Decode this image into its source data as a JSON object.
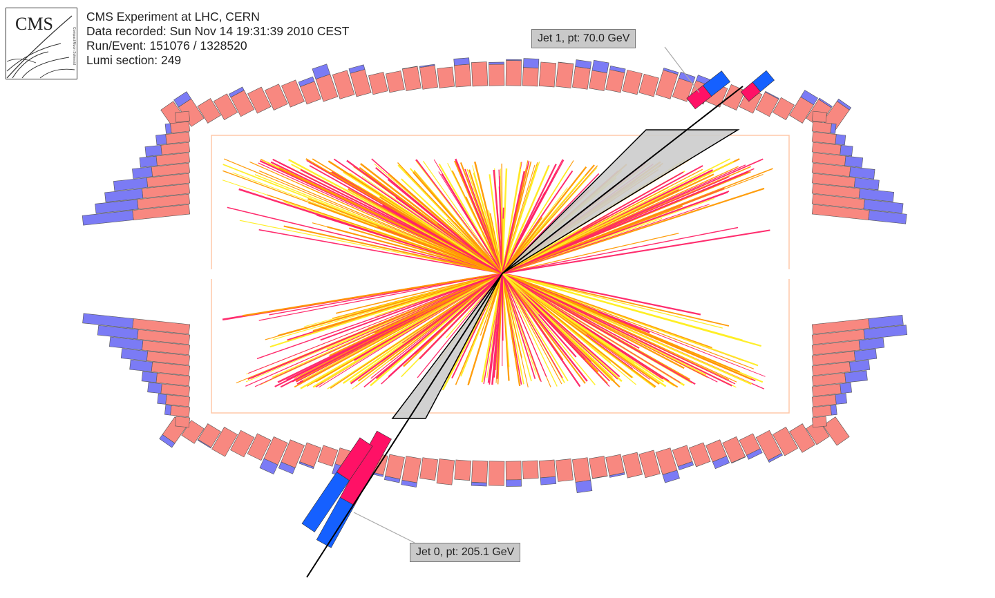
{
  "header": {
    "logo_text": "CMS",
    "logo_subtext": "Compact Muon Solenoid",
    "experiment": "CMS Experiment at LHC, CERN",
    "recorded": "Data recorded: Sun Nov 14 19:31:39 2010 CEST",
    "run_event": "Run/Event: 151076 / 1328520",
    "lumi": "Lumi section: 249"
  },
  "jets": [
    {
      "label": "Jet 0, pt: 205.1 GeV",
      "pt_gev": 205.1
    },
    {
      "label": "Jet 1, pt: 70.0 GeV",
      "pt_gev": 70.0
    }
  ],
  "colors": {
    "ecal_energy": "#f88880",
    "hcal_energy": "#7b7bf5",
    "jet_ecal": "#ff1166",
    "jet_hcal": "#1560ff",
    "track_yellow": "#ffee22",
    "track_orange": "#ff9900",
    "track_red": "#ff2266",
    "tracker_outline": "#ffc8a8",
    "jet_cone": "#cccccc"
  }
}
